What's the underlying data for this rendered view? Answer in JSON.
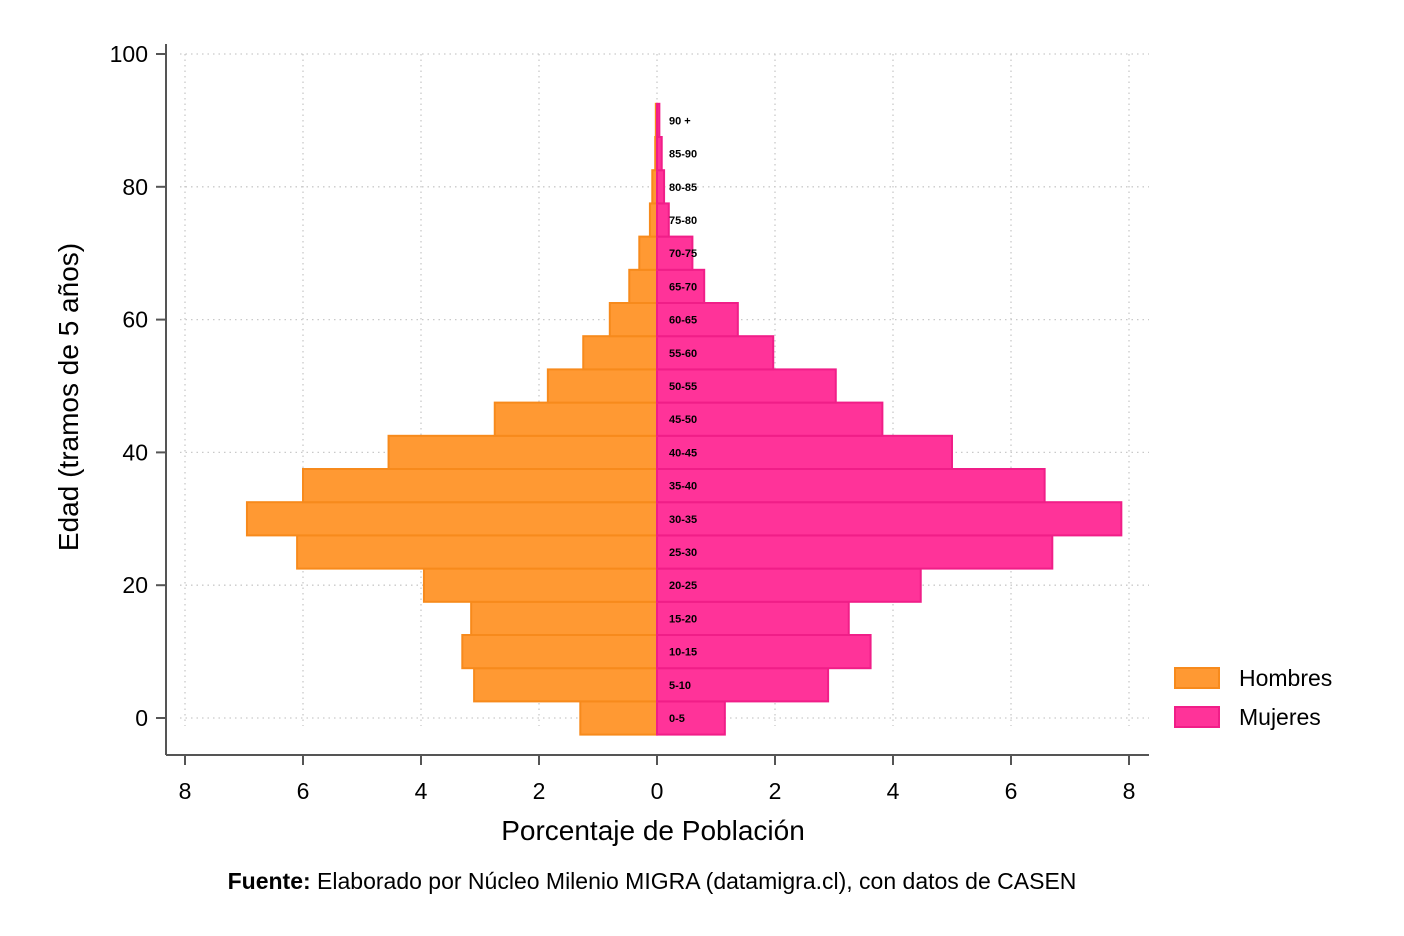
{
  "chart_data": {
    "type": "bar",
    "orientation": "horizontal-population-pyramid",
    "xlabel": "Porcentaje de Población",
    "ylabel": "Edad (tramos de 5 años)",
    "x_ticks": [
      "8",
      "6",
      "4",
      "2",
      "0",
      "2",
      "4",
      "6",
      "8"
    ],
    "y_ticks": [
      "0",
      "20",
      "40",
      "60",
      "80",
      "100"
    ],
    "xlim": [
      -8,
      8
    ],
    "ylim": [
      0,
      100
    ],
    "grid": true,
    "legend_position": "right",
    "categories": [
      "0-5",
      "5-10",
      "10-15",
      "15-20",
      "20-25",
      "25-30",
      "30-35",
      "35-40",
      "40-45",
      "45-50",
      "50-55",
      "55-60",
      "60-65",
      "65-70",
      "70-75",
      "75-80",
      "80-85",
      "85-90",
      "90 +"
    ],
    "category_midpoints": [
      0,
      5,
      10,
      15,
      20,
      25,
      30,
      35,
      40,
      45,
      50,
      55,
      60,
      65,
      70,
      75,
      80,
      85,
      90
    ],
    "series": [
      {
        "name": "Hombres",
        "side": "left",
        "color": "#ff9933",
        "stroke": "#f78a1c",
        "values": [
          1.3,
          3.1,
          3.3,
          3.15,
          3.95,
          6.1,
          6.95,
          6.0,
          4.55,
          2.75,
          1.85,
          1.25,
          0.8,
          0.47,
          0.3,
          0.12,
          0.08,
          0.03,
          0.02
        ]
      },
      {
        "name": "Mujeres",
        "side": "right",
        "color": "#ff3399",
        "stroke": "#f01e88",
        "values": [
          1.15,
          2.9,
          3.62,
          3.25,
          4.47,
          6.7,
          7.87,
          6.57,
          5.0,
          3.82,
          3.03,
          1.97,
          1.37,
          0.8,
          0.6,
          0.2,
          0.12,
          0.08,
          0.04
        ]
      }
    ]
  },
  "footer": {
    "source_label": "Fuente:",
    "source_text": " Elaborado por Núcleo Milenio MIGRA (datamigra.cl), con datos de CASEN"
  }
}
